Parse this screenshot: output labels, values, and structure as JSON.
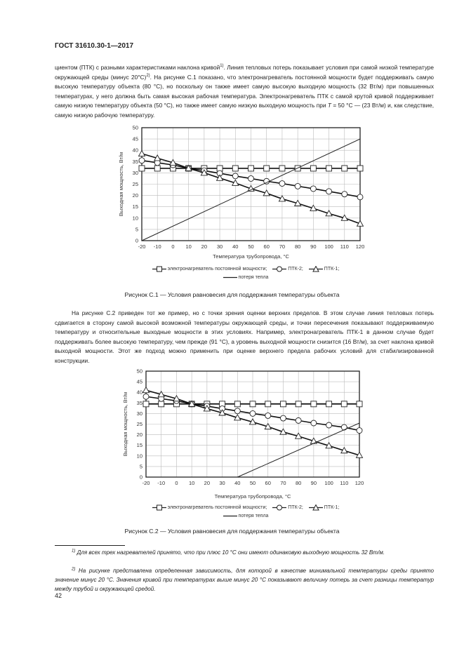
{
  "header": {
    "title": "ГОСТ 31610.30-1—2017"
  },
  "para1": {
    "p1": "циентом (ПТК) с разными характеристиками наклона кривой",
    "s1": "1)",
    "p2": ". Линия тепловых потерь показывает условия при самой низкой температуре окружающей среды (минус 20°С)",
    "s2": "2)",
    "p3": ". На рисунке С.1 показано, что электронагреватель постоянной мощности будет поддерживать самую высокую температуру объекта (80 °С), но поскольку он также имеет самую высокую выходную мощность (32 Вт/м) при повышенных температурах, у него должна быть самая высокая рабочая температура. Электронагреватель ПТК с самой крутой кривой поддерживает самую низкую температуру объекта (50 °С), но также имеет самую низкую выходную мощность при ",
    "t": "T",
    "p4": " = 50 °С — (23 Вт/м) и, как следствие, самую низкую рабочую температуру."
  },
  "figure1": {
    "caption": "Рисунок С.1 — Условия равновесия для поддержания температуры объекта"
  },
  "para2": "На рисунке С.2 приведен тот же пример, но с точки зрения оценки верхних пределов. В этом случае линия тепловых потерь сдвигается в сторону самой высокой возможной температуры окружающей среды, и точки пересечения показывают поддерживаемую температуру и относительные выходные мощности в этих условиях. Например, электронагреватель ПТК-1 в данном случае будет поддерживать более высокую температуру, чем прежде (91 °С), а уровень выходной мощности снизится (16 Вт/м), за счет наклона кривой выходной мощности. Этот же подход можно применить при оценке верхнего предела рабочих условий для стабилизированной конструкции.",
  "figure2": {
    "caption": "Рисунок С.2 — Условия равновесия для поддержания температуры объекта"
  },
  "legend": {
    "constant": "электронагреватель постоянной мощности;",
    "ptk2": "ПТК-2;",
    "ptk1": "ПТК-1;",
    "loss": "потеря тепла"
  },
  "footnotes": [
    {
      "mark": "1)",
      "text": " Для всех трех нагревателей принято, что при плюс 10 °С они имеют одинаковую выходную мощность 32 Вт/м."
    },
    {
      "mark": "2)",
      "text": " На рисунке представлена определенная зависимость, для которой в качестве минимальной температуры среды принято значение  минус 20 °С. Значения кривой при температурах выше минус 20 °С показывают величину потерь за счет разницы температур между трубой и окружающей средой."
    }
  ],
  "page_number": "42",
  "chart_data": [
    {
      "type": "line",
      "xlabel": "Температура трубопровода, °С",
      "ylabel": "Выходная мощность, Вт/м",
      "xlim": [
        -20,
        120
      ],
      "ylim": [
        0,
        50
      ],
      "grid": true,
      "x": [
        -20,
        -10,
        0,
        10,
        20,
        30,
        40,
        50,
        60,
        70,
        80,
        90,
        100,
        110,
        120
      ],
      "xticks": [
        "-20",
        "-10",
        "0",
        "10",
        "20",
        "30",
        "40",
        "50",
        "60",
        "70",
        "80",
        "90",
        "100",
        "110",
        "120"
      ],
      "yticks": [
        "0",
        "5",
        "10",
        "15",
        "20",
        "25",
        "30",
        "35",
        "40",
        "45",
        "50"
      ],
      "series": [
        {
          "name": "электронагреватель постоянной мощности",
          "marker": "square",
          "values": [
            32,
            32,
            32,
            32,
            32,
            32,
            32,
            32,
            32,
            32,
            32,
            32,
            32,
            32,
            32
          ]
        },
        {
          "name": "ПТК-2",
          "marker": "circle",
          "values": [
            35.5,
            34.5,
            33.5,
            32,
            31,
            29.8,
            28.6,
            27.5,
            26.3,
            25.3,
            24.1,
            23,
            21.8,
            20.6,
            19.3
          ]
        },
        {
          "name": "ПТК-1",
          "marker": "triangle",
          "values": [
            38.5,
            36.5,
            34.5,
            32,
            30,
            27.7,
            25.5,
            23,
            21,
            18.5,
            16.5,
            14.3,
            12,
            10,
            7.5
          ]
        },
        {
          "name": "потеря тепла",
          "marker": "none",
          "points": [
            [
              -20,
              0
            ],
            [
              120,
              45
            ]
          ]
        }
      ]
    },
    {
      "type": "line",
      "xlabel": "Температура трубопровода, °С",
      "ylabel": "Выходная мощность, Вт/м",
      "xlim": [
        -20,
        120
      ],
      "ylim": [
        0,
        50
      ],
      "grid": true,
      "x": [
        -20,
        -10,
        0,
        10,
        20,
        30,
        40,
        50,
        60,
        70,
        80,
        90,
        100,
        110,
        120
      ],
      "xticks": [
        "-20",
        "-10",
        "0",
        "10",
        "20",
        "30",
        "40",
        "50",
        "60",
        "70",
        "80",
        "90",
        "100",
        "110",
        "120"
      ],
      "yticks": [
        "0",
        "5",
        "10",
        "15",
        "20",
        "25",
        "30",
        "35",
        "40",
        "45",
        "50"
      ],
      "series": [
        {
          "name": "электронагреватель постоянной мощности",
          "marker": "square",
          "values": [
            34.5,
            34.5,
            34.5,
            34.5,
            34.5,
            34.5,
            34.5,
            34.5,
            34.5,
            34.5,
            34.5,
            34.5,
            34.5,
            34.5,
            34.5
          ]
        },
        {
          "name": "ПТК-2",
          "marker": "circle",
          "values": [
            38,
            37,
            36,
            34.5,
            33.5,
            32.3,
            31.2,
            30,
            29,
            27.8,
            26.7,
            25.5,
            24.5,
            23.5,
            22
          ]
        },
        {
          "name": "ПТК-1",
          "marker": "triangle",
          "values": [
            41,
            39,
            37,
            34.5,
            32.3,
            30.3,
            28,
            26,
            23.8,
            21.3,
            19.3,
            17,
            14.8,
            12.5,
            10.3
          ]
        },
        {
          "name": "потеря тепла",
          "marker": "none",
          "points": [
            [
              40,
              0
            ],
            [
              120,
              25.5
            ]
          ]
        }
      ]
    }
  ]
}
